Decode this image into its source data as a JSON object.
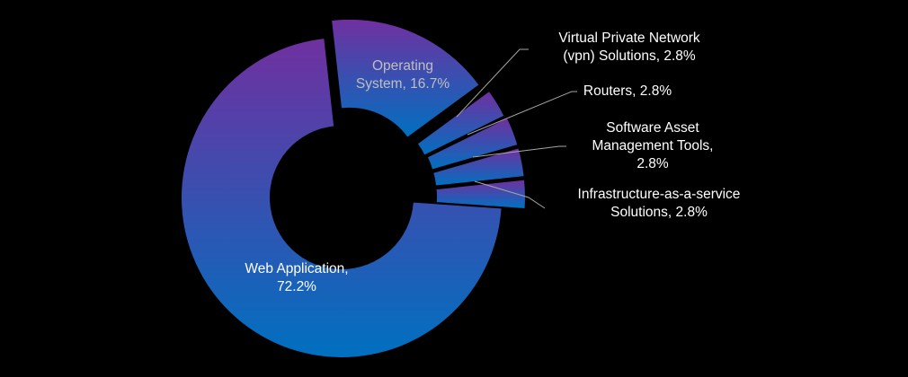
{
  "chart_data": {
    "type": "pie",
    "variant": "exploded-donut",
    "title": "",
    "legend": "none",
    "gradient": {
      "top": "#7030A0",
      "bottom": "#0070C0"
    },
    "slices": [
      {
        "name": "Web Application",
        "value": 72.2,
        "label_lines": [
          "Web Application,",
          "72.2%"
        ],
        "label_color": "#FFFFFF"
      },
      {
        "name": "Operating System",
        "value": 16.7,
        "label_lines": [
          "Operating",
          "System, 16.7%"
        ],
        "label_color": "#BFBFBF"
      },
      {
        "name": "Virtual Private Network (vpn) Solutions",
        "value": 2.8,
        "label_lines": [
          "Virtual Private Network",
          "(vpn) Solutions, 2.8%"
        ],
        "label_color": "#FFFFFF"
      },
      {
        "name": "Routers",
        "value": 2.8,
        "label_lines": [
          "Routers, 2.8%"
        ],
        "label_color": "#FFFFFF"
      },
      {
        "name": "Software Asset Management Tools",
        "value": 2.8,
        "label_lines": [
          "Software Asset",
          "Management Tools,",
          "2.8%"
        ],
        "label_color": "#FFFFFF"
      },
      {
        "name": "Infrastructure-as-a-service Solutions",
        "value": 2.8,
        "label_lines": [
          "Infrastructure-as-a-service",
          "Solutions, 2.8%"
        ],
        "label_color": "#FFFFFF"
      }
    ]
  }
}
